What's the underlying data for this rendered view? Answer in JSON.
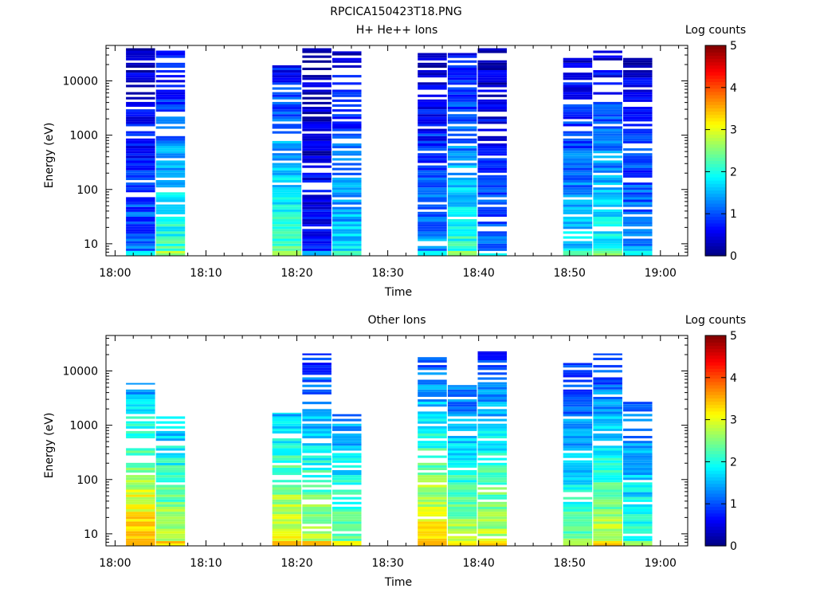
{
  "figure": {
    "title": "RPCICA150423T18.PNG"
  },
  "chart_data": [
    {
      "type": "heatmap",
      "title": "H+ He++ Ions",
      "xlabel": "Time",
      "ylabel": "Energy (eV)",
      "yscale": "log",
      "x_range_minutes_after_18": [
        -1,
        63
      ],
      "x_ticks": [
        "18:00",
        "18:10",
        "18:20",
        "18:30",
        "18:40",
        "18:50",
        "19:00"
      ],
      "ylim": [
        6,
        45000
      ],
      "y_ticks": [
        "10",
        "100",
        "1000",
        "10000"
      ],
      "colorbar": {
        "label": "Log counts",
        "range": [
          0,
          5
        ],
        "ticks": [
          "0",
          "1",
          "2",
          "3",
          "4",
          "5"
        ]
      },
      "columns": [
        {
          "start": 1.2,
          "end": 4.4,
          "tier": 0.2,
          "cap": 40000,
          "variant": 0
        },
        {
          "start": 4.5,
          "end": 7.7,
          "tier": 0.38,
          "cap": 40000,
          "variant": 1
        },
        {
          "start": 17.3,
          "end": 20.5,
          "tier": 0.4,
          "cap": 25000,
          "variant": 2
        },
        {
          "start": 20.6,
          "end": 23.8,
          "tier": 0.12,
          "cap": 40000,
          "variant": 3
        },
        {
          "start": 23.9,
          "end": 27.1,
          "tier": 0.3,
          "cap": 35000,
          "variant": 4
        },
        {
          "start": 33.3,
          "end": 36.5,
          "tier": 0.24,
          "cap": 35000,
          "variant": 5
        },
        {
          "start": 36.6,
          "end": 39.8,
          "tier": 0.38,
          "cap": 35000,
          "variant": 6
        },
        {
          "start": 39.9,
          "end": 43.1,
          "tier": 0.2,
          "cap": 40000,
          "variant": 7
        },
        {
          "start": 49.3,
          "end": 52.5,
          "tier": 0.3,
          "cap": 32000,
          "variant": 8
        },
        {
          "start": 52.6,
          "end": 55.8,
          "tier": 0.34,
          "cap": 40000,
          "variant": 9
        },
        {
          "start": 55.9,
          "end": 59.1,
          "tier": 0.24,
          "cap": 32000,
          "variant": 10
        }
      ]
    },
    {
      "type": "heatmap",
      "title": "Other Ions",
      "xlabel": "Time",
      "ylabel": "Energy (eV)",
      "yscale": "log",
      "x_range_minutes_after_18": [
        -1,
        63
      ],
      "x_ticks": [
        "18:00",
        "18:10",
        "18:20",
        "18:30",
        "18:40",
        "18:50",
        "19:00"
      ],
      "ylim": [
        6,
        45000
      ],
      "y_ticks": [
        "10",
        "100",
        "1000",
        "10000"
      ],
      "colorbar": {
        "label": "Log counts",
        "range": [
          0,
          5
        ],
        "ticks": [
          "0",
          "1",
          "2",
          "3",
          "4",
          "5"
        ]
      },
      "columns": [
        {
          "start": 1.2,
          "end": 4.4,
          "tier": 0.62,
          "cap": 6000,
          "variant": 11
        },
        {
          "start": 4.5,
          "end": 7.7,
          "tier": 0.5,
          "cap": 1700,
          "variant": 12
        },
        {
          "start": 17.3,
          "end": 20.5,
          "tier": 0.55,
          "cap": 1700,
          "variant": 13
        },
        {
          "start": 20.6,
          "end": 23.8,
          "tier": 0.5,
          "cap": 21000,
          "variant": 14
        },
        {
          "start": 23.9,
          "end": 27.1,
          "tier": 0.44,
          "cap": 1600,
          "variant": 15
        },
        {
          "start": 33.3,
          "end": 36.5,
          "tier": 0.58,
          "cap": 18000,
          "variant": 16
        },
        {
          "start": 36.6,
          "end": 39.8,
          "tier": 0.48,
          "cap": 5500,
          "variant": 17
        },
        {
          "start": 39.9,
          "end": 43.1,
          "tier": 0.5,
          "cap": 23000,
          "variant": 18
        },
        {
          "start": 49.3,
          "end": 52.5,
          "tier": 0.42,
          "cap": 14000,
          "variant": 19
        },
        {
          "start": 52.6,
          "end": 55.8,
          "tier": 0.5,
          "cap": 21000,
          "variant": 20
        },
        {
          "start": 55.9,
          "end": 59.1,
          "tier": 0.38,
          "cap": 2700,
          "variant": 21
        }
      ]
    }
  ]
}
